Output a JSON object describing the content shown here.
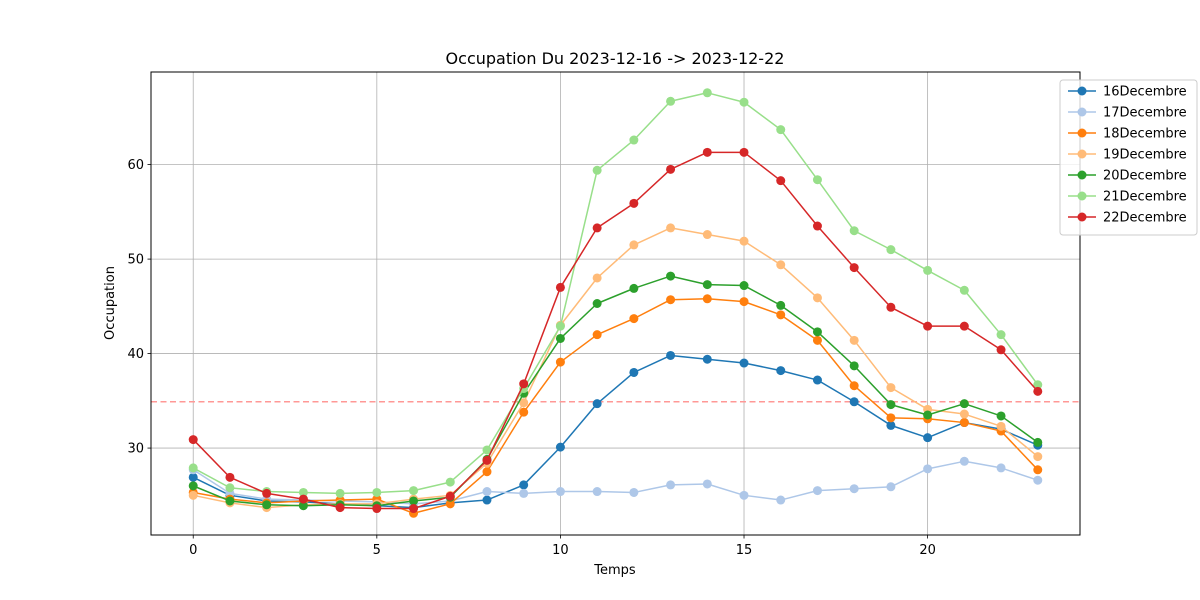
{
  "chart_data": {
    "type": "line",
    "title": "Occupation Du 2023-12-16 -> 2023-12-22",
    "xlabel": "Temps",
    "ylabel": "Occupation",
    "xlim": [
      -1.15,
      24.15
    ],
    "ylim": [
      20.8,
      69.8
    ],
    "xticks": [
      0,
      5,
      10,
      15,
      20
    ],
    "yticks": [
      30,
      40,
      50,
      60
    ],
    "grid": true,
    "legend_position": "upper-right-outside",
    "reference_line": {
      "y": 34.9,
      "color": "#ff9896",
      "style": "dashed"
    },
    "x": [
      0,
      1,
      2,
      3,
      4,
      5,
      6,
      7,
      8,
      9,
      10,
      11,
      12,
      13,
      14,
      15,
      16,
      17,
      18,
      19,
      20,
      21,
      22,
      23
    ],
    "series": [
      {
        "name": "16Decembre",
        "color": "#1f77b4",
        "values": [
          26.9,
          25.0,
          24.4,
          24.3,
          24.1,
          23.9,
          23.7,
          24.2,
          24.5,
          26.1,
          30.1,
          34.7,
          38.0,
          39.8,
          39.4,
          39.0,
          38.2,
          37.2,
          34.9,
          32.4,
          31.1,
          32.7,
          32.0,
          30.3
        ]
      },
      {
        "name": "17Decembre",
        "color": "#aec7e8",
        "values": [
          27.7,
          25.2,
          24.6,
          24.5,
          24.4,
          24.3,
          24.1,
          24.4,
          25.4,
          25.2,
          25.4,
          25.4,
          25.3,
          26.1,
          26.2,
          25.0,
          24.5,
          25.5,
          25.7,
          25.9,
          27.8,
          28.6,
          27.9,
          26.6
        ]
      },
      {
        "name": "18Decembre",
        "color": "#ff7f0e",
        "values": [
          25.3,
          24.6,
          24.2,
          24.4,
          24.5,
          24.6,
          23.1,
          24.1,
          27.5,
          33.8,
          39.1,
          42.0,
          43.7,
          45.7,
          45.8,
          45.5,
          44.1,
          41.4,
          36.6,
          33.2,
          33.1,
          32.7,
          31.8,
          27.7
        ]
      },
      {
        "name": "19Decembre",
        "color": "#ffbb78",
        "values": [
          25.0,
          24.2,
          23.7,
          24.0,
          24.1,
          24.1,
          24.6,
          25.0,
          28.4,
          34.8,
          43.0,
          48.0,
          51.5,
          53.3,
          52.6,
          51.9,
          49.4,
          45.9,
          41.4,
          36.4,
          34.1,
          33.6,
          32.3,
          29.1
        ]
      },
      {
        "name": "20Decembre",
        "color": "#2ca02c",
        "values": [
          26.0,
          24.4,
          24.0,
          23.9,
          24.0,
          23.9,
          24.4,
          24.8,
          28.8,
          35.8,
          41.6,
          45.3,
          46.9,
          48.2,
          47.3,
          47.2,
          45.1,
          42.3,
          38.7,
          34.6,
          33.5,
          34.7,
          33.4,
          30.6
        ]
      },
      {
        "name": "21Decembre",
        "color": "#98df8a",
        "values": [
          27.9,
          25.8,
          25.4,
          25.3,
          25.2,
          25.3,
          25.5,
          26.4,
          29.8,
          36.3,
          42.9,
          59.4,
          62.6,
          66.7,
          67.6,
          66.6,
          63.7,
          58.4,
          53.0,
          51.0,
          48.8,
          46.7,
          42.0,
          36.7
        ]
      },
      {
        "name": "22Decembre",
        "color": "#d62728",
        "values": [
          30.9,
          26.9,
          25.2,
          24.6,
          23.7,
          23.6,
          23.6,
          24.9,
          28.7,
          36.8,
          47.0,
          53.3,
          55.9,
          59.5,
          61.3,
          61.3,
          58.3,
          53.5,
          49.1,
          44.9,
          42.9,
          42.9,
          40.4,
          36.0
        ]
      }
    ]
  }
}
